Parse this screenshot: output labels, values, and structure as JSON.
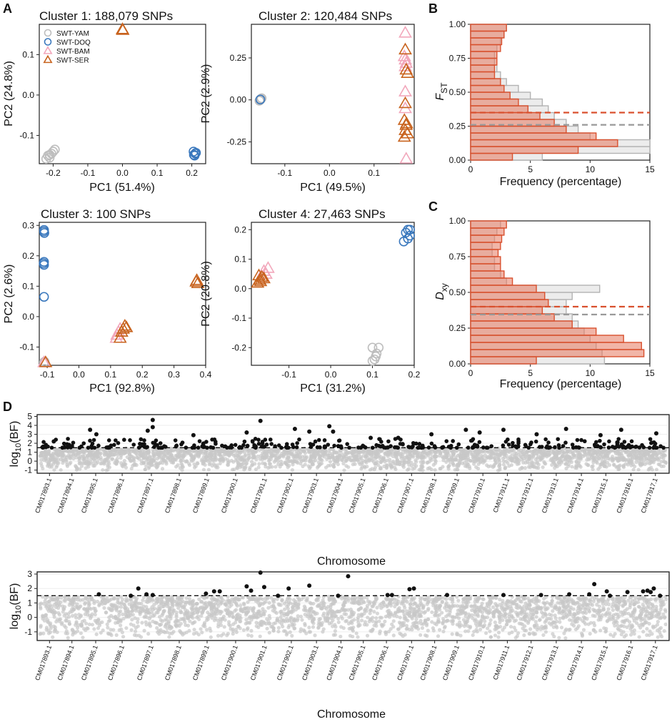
{
  "panel_letters": [
    "A",
    "B",
    "C",
    "D"
  ],
  "legend": [
    {
      "label": "SWT-YAM",
      "shape": "circle",
      "color": "#bdbdbd"
    },
    {
      "label": "SWT-DOQ",
      "shape": "circle",
      "color": "#3a78bd"
    },
    {
      "label": "SWT-BAM",
      "shape": "triangle",
      "color": "#f2a7bb"
    },
    {
      "label": "SWT-SER",
      "shape": "triangle",
      "color": "#c8631e"
    }
  ],
  "chart_data": [
    {
      "type": "scatter",
      "title": "Cluster 1: 188,079 SNPs",
      "xlabel": "PC1 (51.4%)",
      "ylabel": "PC2 (24.8%)",
      "xlim": [
        -0.24,
        0.24
      ],
      "ylim": [
        -0.17,
        0.175
      ],
      "xticks": [
        -0.2,
        -0.1,
        0.0,
        0.1,
        0.2
      ],
      "yticks": [
        -0.1,
        0.0,
        0.1
      ],
      "xticklabels": [
        "-0.2",
        "-0.1",
        "0.0",
        "0.1",
        "0.2"
      ],
      "yticklabels": [
        "-0.1",
        "0.0",
        "0.1"
      ],
      "series": [
        {
          "name": "SWT-YAM",
          "points": [
            [
              -0.215,
              -0.15
            ],
            [
              -0.205,
              -0.145
            ],
            [
              -0.21,
              -0.155
            ],
            [
              -0.2,
              -0.14
            ],
            [
              -0.195,
              -0.135
            ],
            [
              -0.22,
              -0.158
            ],
            [
              -0.21,
              -0.148
            ]
          ]
        },
        {
          "name": "SWT-DOQ",
          "points": [
            [
              0.205,
              -0.14
            ],
            [
              0.21,
              -0.145
            ],
            [
              0.208,
              -0.15
            ],
            [
              0.212,
              -0.143
            ],
            [
              0.206,
              -0.148
            ]
          ]
        },
        {
          "name": "SWT-BAM",
          "points": []
        },
        {
          "name": "SWT-SER",
          "points": [
            [
              0.0,
              0.162
            ],
            [
              0.0,
              0.163
            ],
            [
              0.001,
              0.161
            ]
          ]
        }
      ]
    },
    {
      "type": "scatter",
      "title": "Cluster 2: 120,484 SNPs",
      "xlabel": "PC1 (49.5%)",
      "ylabel": "PC2 (2.9%)",
      "xlim": [
        -0.175,
        0.19
      ],
      "ylim": [
        -0.38,
        0.45
      ],
      "xticks": [
        -0.1,
        0.0,
        0.1
      ],
      "yticks": [
        -0.25,
        0.0,
        0.25
      ],
      "xticklabels": [
        "-0.1",
        "0.0",
        "0.1"
      ],
      "yticklabels": [
        "-0.25",
        "0.00",
        "0.25"
      ],
      "series": [
        {
          "name": "SWT-YAM",
          "points": [
            [
              -0.155,
              0.0
            ],
            [
              -0.152,
              0.01
            ],
            [
              -0.157,
              -0.005
            ],
            [
              -0.154,
              0.005
            ]
          ]
        },
        {
          "name": "SWT-DOQ",
          "points": [
            [
              -0.155,
              0.002
            ]
          ]
        },
        {
          "name": "SWT-BAM",
          "points": [
            [
              0.17,
              0.4
            ],
            [
              0.17,
              0.24
            ],
            [
              0.172,
              0.22
            ],
            [
              0.168,
              0.26
            ],
            [
              0.17,
              0.05
            ],
            [
              0.17,
              -0.05
            ],
            [
              0.172,
              -0.35
            ],
            [
              0.17,
              0.2
            ]
          ]
        },
        {
          "name": "SWT-SER",
          "points": [
            [
              0.17,
              0.3
            ],
            [
              0.175,
              0.16
            ],
            [
              0.172,
              0.18
            ],
            [
              0.17,
              -0.02
            ],
            [
              0.168,
              -0.12
            ],
            [
              0.172,
              -0.15
            ],
            [
              0.17,
              -0.18
            ],
            [
              0.175,
              -0.2
            ],
            [
              0.168,
              -0.22
            ],
            [
              0.173,
              -0.14
            ]
          ]
        }
      ]
    },
    {
      "type": "scatter",
      "title": "Cluster 3: 100 SNPs",
      "xlabel": "PC1 (92.8%)",
      "ylabel": "PC2 (2.6%)",
      "xlim": [
        -0.125,
        0.4
      ],
      "ylim": [
        -0.16,
        0.31
      ],
      "xticks": [
        -0.1,
        0.0,
        0.1,
        0.2,
        0.3,
        0.4
      ],
      "yticks": [
        -0.1,
        0.0,
        0.1,
        0.2,
        0.3
      ],
      "xticklabels": [
        "-0.1",
        "0.0",
        "0.1",
        "0.2",
        "0.3",
        "0.4"
      ],
      "yticklabels": [
        "-0.1",
        "0.0",
        "0.1",
        "0.2",
        "0.3"
      ],
      "series": [
        {
          "name": "SWT-YAM",
          "points": [
            [
              -0.11,
              -0.15
            ],
            [
              -0.108,
              -0.148
            ]
          ]
        },
        {
          "name": "SWT-DOQ",
          "points": [
            [
              -0.11,
              0.285
            ],
            [
              -0.11,
              0.28
            ],
            [
              -0.109,
              0.275
            ],
            [
              -0.11,
              0.18
            ],
            [
              -0.11,
              0.17
            ],
            [
              -0.111,
              0.175
            ],
            [
              -0.11,
              0.065
            ]
          ]
        },
        {
          "name": "SWT-BAM",
          "points": [
            [
              0.12,
              -0.06
            ],
            [
              0.125,
              -0.05
            ],
            [
              0.13,
              -0.04
            ],
            [
              0.118,
              -0.07
            ],
            [
              -0.11,
              -0.15
            ]
          ]
        },
        {
          "name": "SWT-SER",
          "points": [
            [
              0.14,
              -0.04
            ],
            [
              0.145,
              -0.03
            ],
            [
              0.135,
              -0.05
            ],
            [
              0.15,
              -0.035
            ],
            [
              0.13,
              -0.07
            ],
            [
              0.37,
              0.115
            ],
            [
              0.375,
              0.11
            ],
            [
              0.372,
              0.12
            ],
            [
              -0.105,
              -0.15
            ]
          ]
        }
      ]
    },
    {
      "type": "scatter",
      "title": "Cluster 4: 27,463 SNPs",
      "xlabel": "PC1 (31.2%)",
      "ylabel": "PC2 (20.8%)",
      "xlim": [
        -0.19,
        0.2
      ],
      "ylim": [
        -0.26,
        0.225
      ],
      "xticks": [
        -0.1,
        0.0,
        0.1,
        0.2
      ],
      "yticks": [
        -0.2,
        -0.1,
        0.0,
        0.1,
        0.2
      ],
      "xticklabels": [
        "-0.1",
        "0.0",
        "0.1",
        "0.2"
      ],
      "yticklabels": [
        "-0.2",
        "-0.1",
        "0.0",
        "0.1",
        "0.2"
      ],
      "series": [
        {
          "name": "SWT-YAM",
          "points": [
            [
              0.1,
              -0.2
            ],
            [
              0.11,
              -0.22
            ],
            [
              0.105,
              -0.24
            ],
            [
              0.1,
              -0.245
            ],
            [
              0.115,
              -0.2
            ],
            [
              0.108,
              -0.23
            ]
          ]
        },
        {
          "name": "SWT-DOQ",
          "points": [
            [
              0.18,
              0.19
            ],
            [
              0.185,
              0.2
            ],
            [
              0.19,
              0.18
            ],
            [
              0.175,
              0.16
            ],
            [
              0.185,
              0.17
            ],
            [
              0.19,
              0.2
            ]
          ]
        },
        {
          "name": "SWT-BAM",
          "points": [
            [
              -0.16,
              0.06
            ],
            [
              -0.15,
              0.07
            ],
            [
              -0.155,
              0.05
            ],
            [
              -0.165,
              0.04
            ]
          ]
        },
        {
          "name": "SWT-SER",
          "points": [
            [
              -0.17,
              0.03
            ],
            [
              -0.165,
              0.04
            ],
            [
              -0.175,
              0.02
            ],
            [
              -0.16,
              0.035
            ],
            [
              -0.168,
              0.025
            ],
            [
              -0.172,
              0.045
            ]
          ]
        }
      ]
    },
    {
      "type": "bar",
      "orientation": "horizontal-histogram",
      "ylabel_main": "F",
      "ylabel_sub": "ST",
      "xlabel": "Frequency (percentage)",
      "xlim": [
        0,
        15
      ],
      "ylim": [
        0,
        1.0
      ],
      "xticks": [
        0,
        5,
        10,
        15
      ],
      "yticks": [
        0.0,
        0.25,
        0.5,
        0.75,
        1.0
      ],
      "yticklabels": [
        "0.00",
        "0.25",
        "0.50",
        "0.75",
        "1.00"
      ],
      "bin_width": 0.05,
      "bins_start": [
        0.0,
        0.05,
        0.1,
        0.15,
        0.2,
        0.25,
        0.3,
        0.35,
        0.4,
        0.45,
        0.5,
        0.55,
        0.6,
        0.65,
        0.7,
        0.75,
        0.8,
        0.85,
        0.9,
        0.95
      ],
      "background_series": {
        "name": "genome-wide",
        "color": "#b3b3b3",
        "values": [
          6.0,
          15.2,
          15.0,
          10.0,
          9.0,
          8.0,
          7.0,
          6.5,
          6.0,
          5.0,
          4.0,
          3.0,
          2.5,
          2.2,
          2.0,
          2.0,
          2.2,
          2.5,
          2.8,
          3.0
        ]
      },
      "outlier_series": {
        "name": "outlier",
        "color": "#d9502e",
        "values": [
          3.5,
          9.0,
          12.3,
          10.5,
          8.0,
          7.0,
          5.8,
          4.8,
          4.0,
          3.3,
          2.8,
          2.5,
          2.0,
          2.0,
          2.2,
          2.2,
          2.5,
          2.6,
          2.8,
          3.0
        ]
      },
      "hlines": [
        {
          "y": 0.35,
          "color": "#d9502e"
        },
        {
          "y": 0.26,
          "color": "#999999"
        }
      ]
    },
    {
      "type": "bar",
      "orientation": "horizontal-histogram",
      "ylabel_main": "D",
      "ylabel_sub": "xy",
      "xlabel": "Frequency (percentage)",
      "xlim": [
        0,
        15
      ],
      "ylim": [
        0,
        1.0
      ],
      "xticks": [
        0,
        5,
        10,
        15
      ],
      "yticks": [
        0.0,
        0.25,
        0.5,
        0.75,
        1.0
      ],
      "yticklabels": [
        "0.00",
        "0.25",
        "0.50",
        "0.75",
        "1.00"
      ],
      "bin_width": 0.05,
      "bins_start": [
        0.0,
        0.05,
        0.1,
        0.15,
        0.2,
        0.25,
        0.3,
        0.35,
        0.4,
        0.45,
        0.5,
        0.55,
        0.6,
        0.65,
        0.7,
        0.75,
        0.8,
        0.85,
        0.9,
        0.95
      ],
      "background_series": {
        "name": "genome-wide",
        "color": "#b3b3b3",
        "values": [
          11.2,
          11.0,
          10.5,
          10.0,
          9.5,
          9.0,
          8.5,
          8.0,
          8.0,
          8.5,
          10.8,
          3.0,
          2.5,
          2.0,
          2.0,
          1.8,
          1.8,
          2.0,
          2.2,
          2.5
        ]
      },
      "outlier_series": {
        "name": "outlier",
        "color": "#d9502e",
        "values": [
          5.5,
          14.5,
          14.3,
          12.8,
          10.5,
          8.5,
          7.0,
          6.0,
          6.5,
          6.2,
          5.5,
          3.5,
          2.8,
          2.5,
          2.5,
          2.3,
          2.5,
          2.6,
          2.8,
          3.0
        ]
      },
      "hlines": [
        {
          "y": 0.4,
          "color": "#d9502e"
        },
        {
          "y": 0.345,
          "color": "#999999"
        }
      ]
    },
    {
      "type": "scatter",
      "subtype": "manhattan",
      "xlabel": "Chromosome",
      "ylabel_main": "log",
      "ylabel_sub": "10",
      "ylabel_rest": "(BF)",
      "ylim": [
        -1.35,
        5.2
      ],
      "yticks": [
        -1,
        0,
        1,
        2,
        3,
        4,
        5
      ],
      "threshold": 1.5,
      "chromosomes": [
        "CM017893.1",
        "CM017894.1",
        "CM017895.1",
        "CM017896.1",
        "CM017897.1",
        "CM017898.1",
        "CM017899.1",
        "CM017900.1",
        "CM017901.1",
        "CM017902.1",
        "CM017903.1",
        "CM017904.1",
        "CM017905.1",
        "CM017906.1",
        "CM017907.1",
        "CM017908.1",
        "CM017909.1",
        "CM017910.1",
        "CM017911.1",
        "CM017912.1",
        "CM017913.1",
        "CM017914.1",
        "CM017915.1",
        "CM017916.1",
        "CM017917.1"
      ],
      "chrom_lengths": [
        28,
        38,
        32,
        46,
        40,
        42,
        40,
        44,
        42,
        36,
        38,
        34,
        32,
        36,
        38,
        30,
        36,
        40,
        32,
        38,
        36,
        38,
        34,
        40,
        32
      ],
      "highlight_peaks": [
        [
          0.022,
          2.2
        ],
        [
          0.08,
          3.5
        ],
        [
          0.09,
          3.0
        ],
        [
          0.18,
          4.6
        ],
        [
          0.172,
          3.4
        ],
        [
          0.18,
          3.8
        ],
        [
          0.245,
          2.9
        ],
        [
          0.33,
          3.2
        ],
        [
          0.352,
          4.5
        ],
        [
          0.407,
          3.6
        ],
        [
          0.43,
          3.3
        ],
        [
          0.462,
          3.9
        ],
        [
          0.468,
          3.3
        ],
        [
          0.528,
          2.6
        ],
        [
          0.572,
          2.6
        ],
        [
          0.625,
          3.0
        ],
        [
          0.68,
          3.5
        ],
        [
          0.702,
          3.2
        ],
        [
          0.74,
          3.5
        ],
        [
          0.793,
          3.0
        ],
        [
          0.84,
          3.6
        ],
        [
          0.895,
          2.9
        ],
        [
          0.928,
          3.5
        ],
        [
          0.984,
          3.1
        ]
      ]
    },
    {
      "type": "scatter",
      "subtype": "manhattan",
      "xlabel": "Chromosome",
      "ylabel_main": "log",
      "ylabel_sub": "10",
      "ylabel_rest": "(BF)",
      "ylim": [
        -1.6,
        3.15
      ],
      "yticks": [
        -1,
        0,
        1,
        2,
        3
      ],
      "threshold": 1.5,
      "chromosomes": [
        "CM017893.1",
        "CM017894.1",
        "CM017895.1",
        "CM017896.1",
        "CM017897.1",
        "CM017898.1",
        "CM017899.1",
        "CM017900.1",
        "CM017901.1",
        "CM017902.1",
        "CM017903.1",
        "CM017904.1",
        "CM017905.1",
        "CM017906.1",
        "CM017907.1",
        "CM017908.1",
        "CM017909.1",
        "CM017910.1",
        "CM017911.1",
        "CM017912.1",
        "CM017913.1",
        "CM017914.1",
        "CM017915.1",
        "CM017916.1",
        "CM017917.1"
      ],
      "chrom_lengths": [
        28,
        38,
        32,
        46,
        40,
        42,
        40,
        44,
        42,
        36,
        38,
        34,
        32,
        36,
        38,
        30,
        36,
        40,
        32,
        38,
        36,
        38,
        34,
        40,
        32
      ],
      "highlight_peaks": [
        [
          0.094,
          1.6
        ],
        [
          0.145,
          1.5
        ],
        [
          0.157,
          2.0
        ],
        [
          0.17,
          1.6
        ],
        [
          0.18,
          1.55
        ],
        [
          0.265,
          1.65
        ],
        [
          0.278,
          1.8
        ],
        [
          0.287,
          1.8
        ],
        [
          0.33,
          2.15
        ],
        [
          0.337,
          1.85
        ],
        [
          0.352,
          3.1
        ],
        [
          0.358,
          2.1
        ],
        [
          0.397,
          2.0
        ],
        [
          0.38,
          1.5
        ],
        [
          0.43,
          2.2
        ],
        [
          0.476,
          1.5
        ],
        [
          0.492,
          2.85
        ],
        [
          0.555,
          1.55
        ],
        [
          0.562,
          1.55
        ],
        [
          0.59,
          1.95
        ],
        [
          0.597,
          2.0
        ],
        [
          0.65,
          1.55
        ],
        [
          0.74,
          1.55
        ],
        [
          0.8,
          1.55
        ],
        [
          0.845,
          1.6
        ],
        [
          0.877,
          1.6
        ],
        [
          0.885,
          2.3
        ],
        [
          0.905,
          1.8
        ],
        [
          0.91,
          1.5
        ],
        [
          0.938,
          1.75
        ],
        [
          0.963,
          1.8
        ],
        [
          0.97,
          1.85
        ],
        [
          0.975,
          1.75
        ],
        [
          0.98,
          2.0
        ],
        [
          0.99,
          1.5
        ]
      ]
    }
  ]
}
